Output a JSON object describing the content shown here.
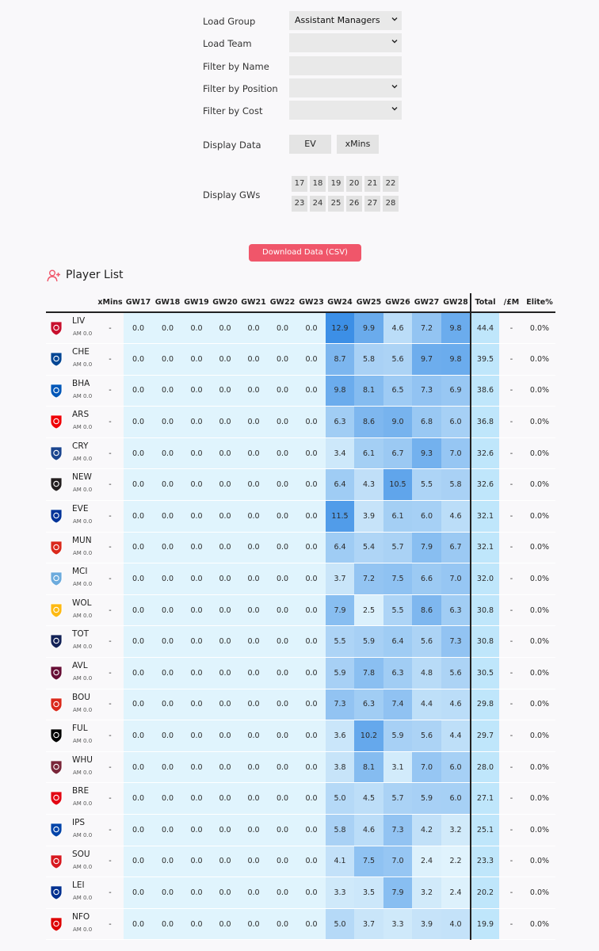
{
  "filters": {
    "load_group": {
      "label": "Load Group",
      "value": "Assistant Managers"
    },
    "load_team": {
      "label": "Load Team",
      "value": ""
    },
    "filter_name": {
      "label": "Filter by Name",
      "value": ""
    },
    "filter_position": {
      "label": "Filter by Position",
      "value": ""
    },
    "filter_cost": {
      "label": "Filter by Cost",
      "value": ""
    }
  },
  "display_data": {
    "label": "Display Data",
    "options": [
      "EV",
      "xMins"
    ]
  },
  "display_gws": {
    "label": "Display GWs",
    "options": [
      "17",
      "18",
      "19",
      "20",
      "21",
      "22",
      "23",
      "24",
      "25",
      "26",
      "27",
      "28"
    ]
  },
  "download_label": "Download Data (CSV)",
  "player_list_title": "Player List",
  "table": {
    "columns": [
      "xMins",
      "GW17",
      "GW18",
      "GW19",
      "GW20",
      "GW21",
      "GW22",
      "GW23",
      "GW24",
      "GW25",
      "GW26",
      "GW27",
      "GW28",
      "Total",
      "/£M",
      "Elite%"
    ],
    "rows": [
      {
        "team": "LIV",
        "sub": "AM 0.0",
        "xmins": "-",
        "pre": [
          "0.0",
          "0.0",
          "0.0",
          "0.0",
          "0.0",
          "0.0",
          "0.0"
        ],
        "gw": [
          "12.9",
          "9.9",
          "4.6",
          "7.2",
          "9.8"
        ],
        "total": "44.4",
        "per_m": "-",
        "elite": "0.0%"
      },
      {
        "team": "CHE",
        "sub": "AM 0.0",
        "xmins": "-",
        "pre": [
          "0.0",
          "0.0",
          "0.0",
          "0.0",
          "0.0",
          "0.0",
          "0.0"
        ],
        "gw": [
          "8.7",
          "5.8",
          "5.6",
          "9.7",
          "9.8"
        ],
        "total": "39.5",
        "per_m": "-",
        "elite": "0.0%"
      },
      {
        "team": "BHA",
        "sub": "AM 0.0",
        "xmins": "-",
        "pre": [
          "0.0",
          "0.0",
          "0.0",
          "0.0",
          "0.0",
          "0.0",
          "0.0"
        ],
        "gw": [
          "9.8",
          "8.1",
          "6.5",
          "7.3",
          "6.9"
        ],
        "total": "38.6",
        "per_m": "-",
        "elite": "0.0%"
      },
      {
        "team": "ARS",
        "sub": "AM 0.0",
        "xmins": "-",
        "pre": [
          "0.0",
          "0.0",
          "0.0",
          "0.0",
          "0.0",
          "0.0",
          "0.0"
        ],
        "gw": [
          "6.3",
          "8.6",
          "9.0",
          "6.8",
          "6.0"
        ],
        "total": "36.8",
        "per_m": "-",
        "elite": "0.0%"
      },
      {
        "team": "CRY",
        "sub": "AM 0.0",
        "xmins": "-",
        "pre": [
          "0.0",
          "0.0",
          "0.0",
          "0.0",
          "0.0",
          "0.0",
          "0.0"
        ],
        "gw": [
          "3.4",
          "6.1",
          "6.7",
          "9.3",
          "7.0"
        ],
        "total": "32.6",
        "per_m": "-",
        "elite": "0.0%"
      },
      {
        "team": "NEW",
        "sub": "AM 0.0",
        "xmins": "-",
        "pre": [
          "0.0",
          "0.0",
          "0.0",
          "0.0",
          "0.0",
          "0.0",
          "0.0"
        ],
        "gw": [
          "6.4",
          "4.3",
          "10.5",
          "5.5",
          "5.8"
        ],
        "total": "32.6",
        "per_m": "-",
        "elite": "0.0%"
      },
      {
        "team": "EVE",
        "sub": "AM 0.0",
        "xmins": "-",
        "pre": [
          "0.0",
          "0.0",
          "0.0",
          "0.0",
          "0.0",
          "0.0",
          "0.0"
        ],
        "gw": [
          "11.5",
          "3.9",
          "6.1",
          "6.0",
          "4.6"
        ],
        "total": "32.1",
        "per_m": "-",
        "elite": "0.0%"
      },
      {
        "team": "MUN",
        "sub": "AM 0.0",
        "xmins": "-",
        "pre": [
          "0.0",
          "0.0",
          "0.0",
          "0.0",
          "0.0",
          "0.0",
          "0.0"
        ],
        "gw": [
          "6.4",
          "5.4",
          "5.7",
          "7.9",
          "6.7"
        ],
        "total": "32.1",
        "per_m": "-",
        "elite": "0.0%"
      },
      {
        "team": "MCI",
        "sub": "AM 0.0",
        "xmins": "-",
        "pre": [
          "0.0",
          "0.0",
          "0.0",
          "0.0",
          "0.0",
          "0.0",
          "0.0"
        ],
        "gw": [
          "3.7",
          "7.2",
          "7.5",
          "6.6",
          "7.0"
        ],
        "total": "32.0",
        "per_m": "-",
        "elite": "0.0%"
      },
      {
        "team": "WOL",
        "sub": "AM 0.0",
        "xmins": "-",
        "pre": [
          "0.0",
          "0.0",
          "0.0",
          "0.0",
          "0.0",
          "0.0",
          "0.0"
        ],
        "gw": [
          "7.9",
          "2.5",
          "5.5",
          "8.6",
          "6.3"
        ],
        "total": "30.8",
        "per_m": "-",
        "elite": "0.0%"
      },
      {
        "team": "TOT",
        "sub": "AM 0.0",
        "xmins": "-",
        "pre": [
          "0.0",
          "0.0",
          "0.0",
          "0.0",
          "0.0",
          "0.0",
          "0.0"
        ],
        "gw": [
          "5.5",
          "5.9",
          "6.4",
          "5.6",
          "7.3"
        ],
        "total": "30.8",
        "per_m": "-",
        "elite": "0.0%"
      },
      {
        "team": "AVL",
        "sub": "AM 0.0",
        "xmins": "-",
        "pre": [
          "0.0",
          "0.0",
          "0.0",
          "0.0",
          "0.0",
          "0.0",
          "0.0"
        ],
        "gw": [
          "5.9",
          "7.8",
          "6.3",
          "4.8",
          "5.6"
        ],
        "total": "30.5",
        "per_m": "-",
        "elite": "0.0%"
      },
      {
        "team": "BOU",
        "sub": "AM 0.0",
        "xmins": "-",
        "pre": [
          "0.0",
          "0.0",
          "0.0",
          "0.0",
          "0.0",
          "0.0",
          "0.0"
        ],
        "gw": [
          "7.3",
          "6.3",
          "7.4",
          "4.4",
          "4.6"
        ],
        "total": "29.8",
        "per_m": "-",
        "elite": "0.0%"
      },
      {
        "team": "FUL",
        "sub": "AM 0.0",
        "xmins": "-",
        "pre": [
          "0.0",
          "0.0",
          "0.0",
          "0.0",
          "0.0",
          "0.0",
          "0.0"
        ],
        "gw": [
          "3.6",
          "10.2",
          "5.9",
          "5.6",
          "4.4"
        ],
        "total": "29.7",
        "per_m": "-",
        "elite": "0.0%"
      },
      {
        "team": "WHU",
        "sub": "AM 0.0",
        "xmins": "-",
        "pre": [
          "0.0",
          "0.0",
          "0.0",
          "0.0",
          "0.0",
          "0.0",
          "0.0"
        ],
        "gw": [
          "3.8",
          "8.1",
          "3.1",
          "7.0",
          "6.0"
        ],
        "total": "28.0",
        "per_m": "-",
        "elite": "0.0%"
      },
      {
        "team": "BRE",
        "sub": "AM 0.0",
        "xmins": "-",
        "pre": [
          "0.0",
          "0.0",
          "0.0",
          "0.0",
          "0.0",
          "0.0",
          "0.0"
        ],
        "gw": [
          "5.0",
          "4.5",
          "5.7",
          "5.9",
          "6.0"
        ],
        "total": "27.1",
        "per_m": "-",
        "elite": "0.0%"
      },
      {
        "team": "IPS",
        "sub": "AM 0.0",
        "xmins": "-",
        "pre": [
          "0.0",
          "0.0",
          "0.0",
          "0.0",
          "0.0",
          "0.0",
          "0.0"
        ],
        "gw": [
          "5.8",
          "4.6",
          "7.3",
          "4.2",
          "3.2"
        ],
        "total": "25.1",
        "per_m": "-",
        "elite": "0.0%"
      },
      {
        "team": "SOU",
        "sub": "AM 0.0",
        "xmins": "-",
        "pre": [
          "0.0",
          "0.0",
          "0.0",
          "0.0",
          "0.0",
          "0.0",
          "0.0"
        ],
        "gw": [
          "4.1",
          "7.5",
          "7.0",
          "2.4",
          "2.2"
        ],
        "total": "23.3",
        "per_m": "-",
        "elite": "0.0%"
      },
      {
        "team": "LEI",
        "sub": "AM 0.0",
        "xmins": "-",
        "pre": [
          "0.0",
          "0.0",
          "0.0",
          "0.0",
          "0.0",
          "0.0",
          "0.0"
        ],
        "gw": [
          "3.3",
          "3.5",
          "7.9",
          "3.2",
          "2.4"
        ],
        "total": "20.2",
        "per_m": "-",
        "elite": "0.0%"
      },
      {
        "team": "NFO",
        "sub": "AM 0.0",
        "xmins": "-",
        "pre": [
          "0.0",
          "0.0",
          "0.0",
          "0.0",
          "0.0",
          "0.0",
          "0.0"
        ],
        "gw": [
          "5.0",
          "3.7",
          "3.3",
          "3.9",
          "4.0"
        ],
        "total": "19.9",
        "per_m": "-",
        "elite": "0.0%"
      }
    ]
  },
  "colors": {
    "accent": "#f0566a",
    "heat_low": "#e3f5fd",
    "heat_high": "#3a8ee6",
    "pre_gw_bg": "#e0f4fd",
    "total_bg": "#bfe6fb"
  },
  "badges": {
    "LIV": "#c8102e",
    "CHE": "#034694",
    "BHA": "#0057b8",
    "ARS": "#ef0107",
    "CRY": "#1b458f",
    "NEW": "#241f20",
    "EVE": "#003399",
    "MUN": "#da291c",
    "MCI": "#6cabdd",
    "WOL": "#fdb913",
    "TOT": "#132257",
    "AVL": "#670e36",
    "BOU": "#da291c",
    "FUL": "#000000",
    "WHU": "#7a263a",
    "BRE": "#e30613",
    "IPS": "#0044a9",
    "SOU": "#d71920",
    "LEI": "#003090",
    "NFO": "#dd0000"
  }
}
